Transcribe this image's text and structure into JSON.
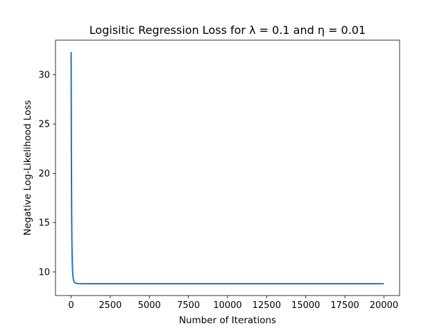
{
  "chart_data": {
    "type": "line",
    "title": "Logisitic Regression Loss for λ = 0.1 and η = 0.01",
    "xlabel": "Number of Iterations",
    "ylabel": "Negative Log-Likelihood Loss",
    "xlim": [
      -1000,
      21000
    ],
    "ylim": [
      7.61,
      33.5
    ],
    "x_ticks": [
      0,
      2500,
      5000,
      7500,
      10000,
      12500,
      15000,
      17500,
      20000
    ],
    "y_ticks": [
      10,
      15,
      20,
      25,
      30
    ],
    "grid": false,
    "series": [
      {
        "color": "#1f77b4",
        "x": [
          0,
          10,
          20,
          30,
          40,
          50,
          60,
          80,
          100,
          120,
          150,
          200,
          250,
          300,
          400,
          500,
          700,
          1000,
          1500,
          2000,
          5000,
          10000,
          15000,
          20000
        ],
        "y": [
          32.3,
          25.0,
          20.0,
          16.6,
          14.4,
          12.9,
          11.9,
          10.6,
          9.95,
          9.55,
          9.2,
          8.98,
          8.9,
          8.86,
          8.83,
          8.82,
          8.815,
          8.81,
          8.81,
          8.81,
          8.81,
          8.81,
          8.81,
          8.81
        ]
      }
    ]
  }
}
